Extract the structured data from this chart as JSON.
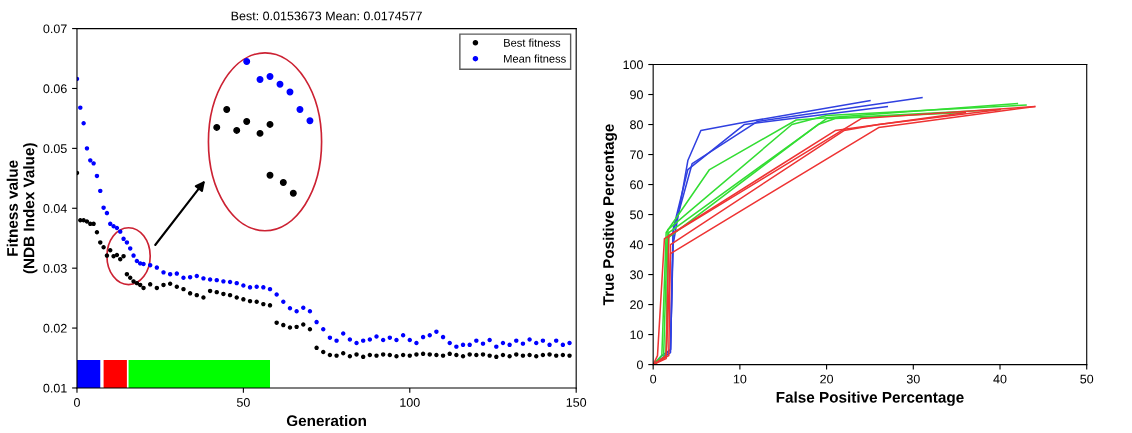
{
  "chart_data": [
    {
      "type": "scatter",
      "title": "Best: 0.0153673 Mean: 0.0174577",
      "xlabel": "Generation",
      "ylabel": "Fitness value\n(NDB Index Value)",
      "x": [
        0,
        1,
        2,
        3,
        4,
        5,
        6,
        7,
        8,
        9,
        10,
        11,
        12,
        13,
        14,
        15,
        16,
        17,
        18,
        19,
        20,
        22,
        24,
        26,
        28,
        30,
        32,
        34,
        36,
        38,
        40,
        42,
        44,
        46,
        48,
        50,
        52,
        54,
        56,
        58,
        60,
        62,
        64,
        66,
        68,
        70,
        72,
        74,
        76,
        78,
        80,
        82,
        84,
        86,
        88,
        90,
        92,
        94,
        96,
        98,
        100,
        102,
        104,
        106,
        108,
        110,
        112,
        114,
        116,
        118,
        120,
        122,
        124,
        126,
        128,
        130,
        132,
        134,
        136,
        138,
        140,
        142,
        144,
        146,
        148
      ],
      "series": [
        {
          "name": "Best fitness",
          "color": "#000000",
          "values": [
            0.0459,
            0.038,
            0.038,
            0.0378,
            0.0374,
            0.0374,
            0.036,
            0.0343,
            0.0335,
            0.0321,
            0.033,
            0.032,
            0.0322,
            0.0315,
            0.032,
            0.029,
            0.0284,
            0.0278,
            0.0275,
            0.0272,
            0.0267,
            0.0273,
            0.0267,
            0.0272,
            0.0274,
            0.0269,
            0.0265,
            0.0258,
            0.0255,
            0.0251,
            0.0262,
            0.026,
            0.0257,
            0.0255,
            0.0251,
            0.0248,
            0.0245,
            0.0244,
            0.024,
            0.0238,
            0.0209,
            0.0205,
            0.0201,
            0.0202,
            0.0206,
            0.0198,
            0.0167,
            0.016,
            0.0155,
            0.0154,
            0.0158,
            0.0153,
            0.0156,
            0.0152,
            0.0155,
            0.0154,
            0.0156,
            0.0155,
            0.0153,
            0.0155,
            0.0154,
            0.0156,
            0.0157,
            0.0156,
            0.0155,
            0.0154,
            0.0157,
            0.0155,
            0.0153,
            0.0156,
            0.0155,
            0.0156,
            0.0154,
            0.0152,
            0.0155,
            0.0153,
            0.0156,
            0.0154,
            0.0155,
            0.0153,
            0.0155,
            0.0156,
            0.0154,
            0.0155,
            0.0154
          ]
        },
        {
          "name": "Mean fitness",
          "color": "#0000ff",
          "values": [
            0.0616,
            0.0568,
            0.0542,
            0.05,
            0.048,
            0.0475,
            0.0454,
            0.0429,
            0.0401,
            0.0392,
            0.0374,
            0.037,
            0.0367,
            0.0361,
            0.0349,
            0.0343,
            0.0333,
            0.0321,
            0.0312,
            0.0308,
            0.0307,
            0.0305,
            0.0301,
            0.0293,
            0.029,
            0.0291,
            0.0284,
            0.0285,
            0.0287,
            0.0283,
            0.0281,
            0.028,
            0.0278,
            0.0277,
            0.0275,
            0.0271,
            0.0268,
            0.0269,
            0.0268,
            0.0265,
            0.0256,
            0.0244,
            0.0233,
            0.0228,
            0.0234,
            0.0228,
            0.021,
            0.0198,
            0.0184,
            0.0179,
            0.0191,
            0.0181,
            0.0175,
            0.0179,
            0.0181,
            0.0186,
            0.018,
            0.0184,
            0.018,
            0.0188,
            0.018,
            0.0175,
            0.0185,
            0.0188,
            0.0194,
            0.0185,
            0.0175,
            0.0169,
            0.0172,
            0.0172,
            0.0179,
            0.0174,
            0.018,
            0.0169,
            0.0175,
            0.0172,
            0.0179,
            0.0174,
            0.0181,
            0.0175,
            0.0179,
            0.0172,
            0.0179,
            0.0172,
            0.0175
          ]
        }
      ],
      "bands": [
        {
          "axis": "x",
          "from": 0,
          "to": 7,
          "color": "#0000ff"
        },
        {
          "axis": "x",
          "from": 8,
          "to": 15,
          "color": "#ff0000"
        },
        {
          "axis": "x",
          "from": 15.5,
          "to": 58,
          "color": "#00ff00"
        }
      ],
      "xlim": [
        0,
        150
      ],
      "xticks": [
        0,
        50,
        100,
        150
      ],
      "ylim": [
        0.01,
        0.07
      ],
      "yticks": [
        0.01,
        0.02,
        0.03,
        0.04,
        0.05,
        0.06,
        0.07
      ],
      "marker": "circle",
      "legend": "top right",
      "grid": false
    },
    {
      "type": "line",
      "xlabel": "False Positive Percentage",
      "ylabel": "True Positive Percentage",
      "series": [
        {
          "color": "#3040e0",
          "x": [
            0,
            1,
            2,
            2.3,
            4,
            5.5,
            11,
            25
          ],
          "values": [
            0,
            2,
            5,
            40,
            68,
            78,
            81,
            88
          ]
        },
        {
          "color": "#3040e0",
          "x": [
            0,
            1,
            2,
            2.3,
            4,
            10.5,
            27
          ],
          "values": [
            0,
            3,
            5,
            45,
            65,
            80,
            86
          ]
        },
        {
          "color": "#3040e0",
          "x": [
            0,
            2,
            2.3,
            4.5,
            12,
            31
          ],
          "values": [
            0,
            4,
            44,
            67,
            81,
            89
          ]
        },
        {
          "color": "#33dd33",
          "x": [
            0,
            1,
            1.5,
            6.5,
            16.5,
            42
          ],
          "values": [
            0,
            3,
            44,
            65,
            81.5,
            87
          ]
        },
        {
          "color": "#33dd33",
          "x": [
            0,
            1.5,
            1.7,
            16,
            20,
            43
          ],
          "values": [
            0,
            3,
            45,
            80,
            83,
            86.5
          ]
        },
        {
          "color": "#33dd33",
          "x": [
            0,
            1.5,
            1.8,
            20,
            40
          ],
          "values": [
            0,
            3,
            44,
            82,
            85
          ]
        },
        {
          "color": "#33dd33",
          "x": [
            0,
            1.2,
            1.6,
            19,
            21,
            36
          ],
          "values": [
            0,
            2,
            42,
            80,
            82,
            84
          ]
        },
        {
          "color": "#ee3333",
          "x": [
            0,
            0.5,
            1.3,
            24,
            44
          ],
          "values": [
            0,
            3,
            42,
            82,
            86
          ]
        },
        {
          "color": "#ee3333",
          "x": [
            0,
            1.5,
            1.8,
            21,
            36
          ],
          "values": [
            0,
            3,
            43,
            78,
            84
          ]
        },
        {
          "color": "#ee3333",
          "x": [
            0,
            1.5,
            2,
            26,
            44
          ],
          "values": [
            0,
            2,
            37,
            79,
            86
          ]
        },
        {
          "color": "#ee3333",
          "x": [
            0,
            1.8,
            2,
            22,
            26,
            40
          ],
          "values": [
            0,
            3,
            40,
            78,
            80,
            85
          ]
        }
      ],
      "xlim": [
        0,
        50
      ],
      "xticks": [
        0,
        10,
        20,
        30,
        40,
        50
      ],
      "ylim": [
        0,
        100
      ],
      "yticks": [
        0,
        10,
        20,
        30,
        40,
        50,
        60,
        70,
        80,
        90,
        100
      ],
      "grid": false,
      "marker": "none",
      "line_style": "solid"
    }
  ]
}
